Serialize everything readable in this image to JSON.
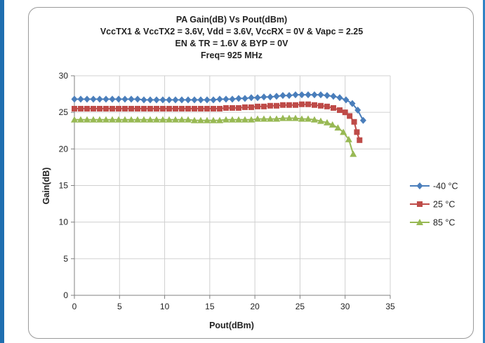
{
  "chart_data": {
    "type": "line",
    "title": [
      "PA Gain(dB) Vs Pout(dBm)",
      "VccTX1 & VccTX2 = 3.6V, Vdd = 3.6V, VccRX  = 0V & Vapc = 2.25",
      "EN & TR = 1.6V & BYP = 0V",
      "Freq= 925 MHz"
    ],
    "xlabel": "Pout(dBm)",
    "ylabel": "Gain(dB)",
    "xlim": [
      0,
      35
    ],
    "ylim": [
      0,
      30
    ],
    "xticks": [
      0,
      5,
      10,
      15,
      20,
      25,
      30,
      35
    ],
    "yticks": [
      0,
      5,
      10,
      15,
      20,
      25,
      30
    ],
    "grid": true,
    "legend_position": "right",
    "colors": {
      "frame_left": "#1f6fb0",
      "frame_right": "#2f82c4",
      "grid": "#d0d0d0",
      "axis": "#808080"
    },
    "series": [
      {
        "name": "-40 °C",
        "color": "#4a7ebb",
        "marker": "diamond",
        "x": [
          0,
          0.7,
          1.4,
          2.1,
          2.8,
          3.5,
          4.2,
          4.9,
          5.6,
          6.3,
          7,
          7.7,
          8.4,
          9.1,
          9.8,
          10.5,
          11.2,
          11.9,
          12.6,
          13.3,
          14,
          14.7,
          15.4,
          16.1,
          16.8,
          17.5,
          18.2,
          18.9,
          19.6,
          20.3,
          21,
          21.7,
          22.4,
          23.1,
          23.8,
          24.5,
          25.2,
          25.9,
          26.6,
          27.3,
          28,
          28.7,
          29.4,
          30.1,
          30.8,
          31.4,
          32
        ],
        "y": [
          26.8,
          26.8,
          26.8,
          26.8,
          26.8,
          26.8,
          26.8,
          26.8,
          26.8,
          26.8,
          26.8,
          26.7,
          26.7,
          26.7,
          26.7,
          26.7,
          26.7,
          26.7,
          26.7,
          26.7,
          26.7,
          26.7,
          26.7,
          26.8,
          26.8,
          26.8,
          26.9,
          26.9,
          27.0,
          27.0,
          27.1,
          27.1,
          27.2,
          27.3,
          27.3,
          27.4,
          27.4,
          27.4,
          27.4,
          27.4,
          27.3,
          27.2,
          27.0,
          26.7,
          26.2,
          25.3,
          23.9
        ]
      },
      {
        "name": "25 °C",
        "color": "#be4b48",
        "marker": "square",
        "x": [
          0,
          0.7,
          1.4,
          2.1,
          2.8,
          3.5,
          4.2,
          4.9,
          5.6,
          6.3,
          7,
          7.7,
          8.4,
          9.1,
          9.8,
          10.5,
          11.2,
          11.9,
          12.6,
          13.3,
          14,
          14.7,
          15.4,
          16.1,
          16.8,
          17.5,
          18.2,
          18.9,
          19.6,
          20.3,
          21,
          21.7,
          22.4,
          23.1,
          23.8,
          24.5,
          25.2,
          25.9,
          26.6,
          27.3,
          28,
          28.7,
          29.4,
          30,
          30.5,
          31,
          31.3,
          31.6
        ],
        "y": [
          25.5,
          25.5,
          25.5,
          25.5,
          25.5,
          25.5,
          25.5,
          25.5,
          25.5,
          25.5,
          25.5,
          25.5,
          25.5,
          25.5,
          25.5,
          25.5,
          25.5,
          25.5,
          25.5,
          25.5,
          25.5,
          25.5,
          25.5,
          25.5,
          25.6,
          25.6,
          25.6,
          25.7,
          25.7,
          25.8,
          25.8,
          25.9,
          25.9,
          26.0,
          26.0,
          26.0,
          26.1,
          26.1,
          26.0,
          25.9,
          25.8,
          25.6,
          25.3,
          25.0,
          24.5,
          23.7,
          22.3,
          21.2
        ]
      },
      {
        "name": "85 °C",
        "color": "#98b954",
        "marker": "triangle",
        "x": [
          0,
          0.7,
          1.4,
          2.1,
          2.8,
          3.5,
          4.2,
          4.9,
          5.6,
          6.3,
          7,
          7.7,
          8.4,
          9.1,
          9.8,
          10.5,
          11.2,
          11.9,
          12.6,
          13.3,
          14,
          14.7,
          15.4,
          16.1,
          16.8,
          17.5,
          18.2,
          18.9,
          19.6,
          20.3,
          21,
          21.7,
          22.4,
          23.1,
          23.8,
          24.5,
          25.2,
          25.9,
          26.6,
          27.3,
          28,
          28.6,
          29.2,
          29.8,
          30.4,
          30.9
        ],
        "y": [
          24.0,
          24.0,
          24.0,
          24.0,
          24.0,
          24.0,
          24.0,
          24.0,
          24.0,
          24.0,
          24.0,
          24.0,
          24.0,
          24.0,
          24.0,
          24.0,
          24.0,
          24.0,
          24.0,
          23.9,
          23.9,
          23.9,
          23.9,
          23.9,
          24.0,
          24.0,
          24.0,
          24.0,
          24.0,
          24.1,
          24.1,
          24.1,
          24.1,
          24.2,
          24.2,
          24.2,
          24.1,
          24.1,
          24.0,
          23.8,
          23.6,
          23.3,
          22.9,
          22.3,
          21.3,
          19.3
        ]
      }
    ]
  }
}
